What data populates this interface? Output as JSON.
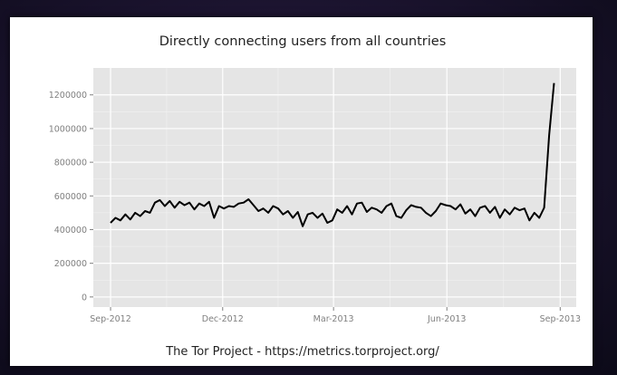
{
  "chart_data": {
    "type": "line",
    "title": "Directly connecting users from all countries",
    "caption": "The Tor Project - https://metrics.torproject.org/",
    "xlabel": "",
    "ylabel": "",
    "x_ticks": [
      {
        "date": "2012-09-01",
        "label": "Sep-2012"
      },
      {
        "date": "2012-12-01",
        "label": "Dec-2012"
      },
      {
        "date": "2013-03-01",
        "label": "Mar-2013"
      },
      {
        "date": "2013-06-01",
        "label": "Jun-2013"
      },
      {
        "date": "2013-09-01",
        "label": "Sep-2013"
      }
    ],
    "y_ticks": [
      {
        "value": 0,
        "label": "0"
      },
      {
        "value": 200000,
        "label": "200000"
      },
      {
        "value": 400000,
        "label": "400000"
      },
      {
        "value": 600000,
        "label": "600000"
      },
      {
        "value": 800000,
        "label": "800000"
      },
      {
        "value": 1000000,
        "label": "1000000"
      },
      {
        "value": 1200000,
        "label": "1200000"
      }
    ],
    "xlim": [
      "2012-08-18",
      "2013-09-14"
    ],
    "ylim": [
      -60000,
      1360000
    ],
    "grid": true,
    "line_color": "#000000",
    "panel_color": "#e5e5e5",
    "series": [
      {
        "x": [
          "2012-09-01",
          "2012-09-05",
          "2012-09-09",
          "2012-09-13",
          "2012-09-17",
          "2012-09-21",
          "2012-09-25",
          "2012-09-29",
          "2012-10-03",
          "2012-10-07",
          "2012-10-11",
          "2012-10-15",
          "2012-10-19",
          "2012-10-23",
          "2012-10-27",
          "2012-10-31",
          "2012-11-04",
          "2012-11-08",
          "2012-11-12",
          "2012-11-16",
          "2012-11-20",
          "2012-11-24",
          "2012-11-28",
          "2012-12-02",
          "2012-12-06",
          "2012-12-10",
          "2012-12-14",
          "2012-12-18",
          "2012-12-22",
          "2012-12-26",
          "2012-12-30",
          "2013-01-03",
          "2013-01-07",
          "2013-01-11",
          "2013-01-15",
          "2013-01-19",
          "2013-01-23",
          "2013-01-27",
          "2013-01-31",
          "2013-02-04",
          "2013-02-08",
          "2013-02-12",
          "2013-02-16",
          "2013-02-20",
          "2013-02-24",
          "2013-02-28",
          "2013-03-04",
          "2013-03-08",
          "2013-03-12",
          "2013-03-16",
          "2013-03-20",
          "2013-03-24",
          "2013-03-28",
          "2013-04-01",
          "2013-04-05",
          "2013-04-09",
          "2013-04-13",
          "2013-04-17",
          "2013-04-21",
          "2013-04-25",
          "2013-04-29",
          "2013-05-03",
          "2013-05-07",
          "2013-05-11",
          "2013-05-15",
          "2013-05-19",
          "2013-05-23",
          "2013-05-27",
          "2013-05-31",
          "2013-06-04",
          "2013-06-08",
          "2013-06-12",
          "2013-06-16",
          "2013-06-20",
          "2013-06-24",
          "2013-06-28",
          "2013-07-02",
          "2013-07-06",
          "2013-07-10",
          "2013-07-14",
          "2013-07-18",
          "2013-07-22",
          "2013-07-26",
          "2013-07-30",
          "2013-08-03",
          "2013-08-07",
          "2013-08-11",
          "2013-08-15",
          "2013-08-19",
          "2013-08-23",
          "2013-08-27"
        ],
        "y": [
          440000,
          470000,
          455000,
          490000,
          460000,
          500000,
          480000,
          510000,
          500000,
          560000,
          575000,
          540000,
          570000,
          530000,
          565000,
          545000,
          560000,
          520000,
          555000,
          540000,
          565000,
          470000,
          540000,
          525000,
          540000,
          535000,
          555000,
          560000,
          580000,
          545000,
          510000,
          525000,
          500000,
          540000,
          525000,
          490000,
          510000,
          470000,
          505000,
          420000,
          490000,
          500000,
          470000,
          495000,
          440000,
          455000,
          520000,
          500000,
          540000,
          490000,
          555000,
          560000,
          505000,
          530000,
          520000,
          500000,
          540000,
          555000,
          480000,
          470000,
          515000,
          545000,
          535000,
          530000,
          500000,
          480000,
          510000,
          555000,
          545000,
          540000,
          520000,
          550000,
          495000,
          520000,
          480000,
          530000,
          540000,
          500000,
          535000,
          470000,
          520000,
          490000,
          530000,
          515000,
          525000,
          455000,
          500000,
          470000,
          530000,
          960000,
          1270000
        ]
      }
    ]
  }
}
